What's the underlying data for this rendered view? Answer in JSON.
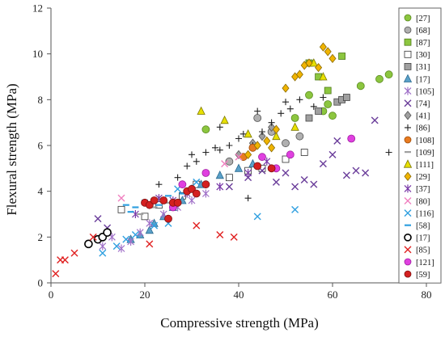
{
  "chart_data": {
    "type": "scatter",
    "title": "",
    "xlabel": "Compressive strength (MPa)",
    "ylabel": "Flexural strength (MPa)",
    "xlim": [
      0,
      80
    ],
    "ylim": [
      0,
      12
    ],
    "xticks": [
      "0",
      "20",
      "40",
      "60",
      "80"
    ],
    "yticks": [
      "0",
      "2",
      "4",
      "6",
      "8",
      "10",
      "12"
    ],
    "grid": false,
    "legend_position": "right",
    "series": [
      {
        "name": "[27]",
        "marker": "circle",
        "color": "#8cc63f",
        "stroke": "#5a8a1f",
        "points": [
          [
            33,
            6.7
          ],
          [
            52,
            7.2
          ],
          [
            55,
            8.2
          ],
          [
            58,
            7.5
          ],
          [
            59,
            7.8
          ],
          [
            60,
            7.3
          ],
          [
            66,
            8.6
          ],
          [
            70,
            8.9
          ],
          [
            72,
            9.1
          ]
        ]
      },
      {
        "name": "[68]",
        "marker": "circle",
        "color": "#b0b0b0",
        "stroke": "#555555",
        "points": [
          [
            38,
            5.3
          ],
          [
            44,
            7.2
          ],
          [
            47,
            6.6
          ],
          [
            50,
            6.1
          ],
          [
            53,
            6.4
          ]
        ]
      },
      {
        "name": "[87]",
        "marker": "square",
        "color": "#8cc63f",
        "stroke": "#4f7a1a",
        "points": [
          [
            55,
            9.6
          ],
          [
            57,
            9.0
          ],
          [
            59,
            8.4
          ],
          [
            62,
            9.9
          ]
        ]
      },
      {
        "name": "[30]",
        "marker": "square",
        "color": "#ffffff",
        "stroke": "#333333",
        "points": [
          [
            15,
            3.2
          ],
          [
            20,
            2.9
          ],
          [
            23,
            3.4
          ],
          [
            28,
            3.8
          ],
          [
            31,
            4.3
          ],
          [
            38,
            4.6
          ],
          [
            42,
            4.9
          ],
          [
            45,
            5.0
          ],
          [
            50,
            5.4
          ],
          [
            54,
            5.7
          ]
        ]
      },
      {
        "name": "[31]",
        "marker": "square",
        "color": "#a0a0a0",
        "stroke": "#444444",
        "points": [
          [
            55,
            7.2
          ],
          [
            57,
            7.5
          ],
          [
            61,
            7.9
          ],
          [
            62,
            8.0
          ],
          [
            63,
            8.1
          ]
        ]
      },
      {
        "name": "[17]",
        "marker": "triangle",
        "color": "#5aa0c8",
        "stroke": "#2a6a90",
        "points": [
          [
            17,
            1.9
          ],
          [
            19,
            2.1
          ],
          [
            21,
            2.3
          ],
          [
            22,
            2.6
          ],
          [
            24,
            2.9
          ],
          [
            26,
            3.3
          ],
          [
            28,
            3.6
          ],
          [
            30,
            4.1
          ],
          [
            32,
            4.3
          ],
          [
            36,
            4.7
          ],
          [
            40,
            5.0
          ],
          [
            43,
            5.2
          ]
        ]
      },
      {
        "name": "[105]",
        "marker": "star",
        "color": "#a070c8",
        "stroke": "#a070c8",
        "points": [
          [
            11,
            1.6
          ],
          [
            13,
            2.0
          ],
          [
            15,
            1.5
          ],
          [
            17,
            1.8
          ],
          [
            19,
            2.2
          ],
          [
            21,
            2.6
          ],
          [
            24,
            3.0
          ],
          [
            27,
            3.3
          ],
          [
            30,
            3.6
          ],
          [
            33,
            3.9
          ],
          [
            36,
            4.2
          ]
        ]
      },
      {
        "name": "[74]",
        "marker": "x",
        "color": "#6a3d9a",
        "stroke": "#6a3d9a",
        "points": [
          [
            10,
            2.8
          ],
          [
            12,
            2.4
          ],
          [
            38,
            4.2
          ],
          [
            42,
            4.6
          ],
          [
            45,
            4.9
          ],
          [
            48,
            4.4
          ],
          [
            50,
            4.8
          ],
          [
            52,
            4.2
          ],
          [
            54,
            4.5
          ],
          [
            56,
            4.3
          ],
          [
            58,
            5.2
          ],
          [
            60,
            5.6
          ],
          [
            61,
            6.2
          ],
          [
            63,
            4.7
          ],
          [
            65,
            4.9
          ],
          [
            67,
            4.8
          ],
          [
            69,
            7.1
          ]
        ]
      },
      {
        "name": "[41]",
        "marker": "diamond",
        "color": "#a0a0a0",
        "stroke": "#555555",
        "points": [
          [
            40,
            5.6
          ],
          [
            43,
            6.1
          ],
          [
            45,
            6.4
          ],
          [
            47,
            6.8
          ]
        ]
      },
      {
        "name": "[86]",
        "marker": "plus",
        "color": "#222222",
        "stroke": "#222222",
        "points": [
          [
            23,
            4.3
          ],
          [
            27,
            4.6
          ],
          [
            29,
            5.1
          ],
          [
            31,
            5.3
          ],
          [
            33,
            5.7
          ],
          [
            35,
            5.9
          ],
          [
            36,
            5.8
          ],
          [
            38,
            6.0
          ],
          [
            40,
            6.3
          ],
          [
            41,
            6.5
          ],
          [
            43,
            6.0
          ],
          [
            45,
            6.6
          ],
          [
            47,
            7.0
          ],
          [
            49,
            7.4
          ],
          [
            50,
            7.9
          ],
          [
            51,
            7.6
          ],
          [
            53,
            8.0
          ],
          [
            56,
            7.7
          ],
          [
            58,
            8.1
          ],
          [
            72,
            5.7
          ],
          [
            42,
            3.7
          ],
          [
            36,
            6.8
          ],
          [
            44,
            7.5
          ],
          [
            30,
            5.6
          ]
        ]
      },
      {
        "name": "[108]",
        "marker": "circle",
        "color": "#e87b20",
        "stroke": "#a04d08",
        "points": [
          [
            41,
            5.5
          ],
          [
            43,
            5.9
          ]
        ]
      },
      {
        "name": "[109]",
        "marker": "dash",
        "color": "#c8c8c8",
        "stroke": "#a0a0a0",
        "points": [
          [
            19,
            3.0
          ],
          [
            22,
            3.3
          ],
          [
            25,
            3.5
          ]
        ]
      },
      {
        "name": "[111]",
        "marker": "triangle",
        "color": "#e8e000",
        "stroke": "#7a7600",
        "points": [
          [
            37,
            7.1
          ],
          [
            32,
            7.5
          ],
          [
            42,
            6.5
          ],
          [
            48,
            6.4
          ],
          [
            52,
            6.8
          ],
          [
            56,
            9.6
          ],
          [
            58,
            9.0
          ]
        ]
      },
      {
        "name": "[29]",
        "marker": "diamond",
        "color": "#f0b400",
        "stroke": "#8a6a00",
        "points": [
          [
            44,
            6.0
          ],
          [
            46,
            6.2
          ],
          [
            48,
            6.7
          ],
          [
            50,
            8.5
          ],
          [
            52,
            9.0
          ],
          [
            53,
            9.1
          ],
          [
            54,
            9.5
          ],
          [
            55,
            9.6
          ],
          [
            57,
            9.4
          ],
          [
            58,
            10.3
          ],
          [
            59,
            10.1
          ],
          [
            60,
            9.8
          ],
          [
            42,
            5.6
          ],
          [
            47,
            5.9
          ]
        ]
      },
      {
        "name": "[37]",
        "marker": "star",
        "color": "#7a3aa8",
        "stroke": "#7a3aa8",
        "points": [
          [
            18,
            3.0
          ],
          [
            23,
            3.7
          ],
          [
            26,
            3.6
          ],
          [
            29,
            3.9
          ],
          [
            36,
            4.2
          ],
          [
            42,
            4.8
          ],
          [
            46,
            5.3
          ]
        ]
      },
      {
        "name": "[80]",
        "marker": "x",
        "color": "#f080c0",
        "stroke": "#f080c0",
        "points": [
          [
            15,
            3.7
          ],
          [
            37,
            5.2
          ],
          [
            40,
            5.5
          ]
        ]
      },
      {
        "name": "[116]",
        "marker": "x",
        "color": "#30a0e0",
        "stroke": "#30a0e0",
        "points": [
          [
            11,
            1.3
          ],
          [
            14,
            1.6
          ],
          [
            16,
            1.9
          ],
          [
            18,
            2.1
          ],
          [
            22,
            2.5
          ],
          [
            25,
            2.6
          ],
          [
            44,
            2.9
          ],
          [
            52,
            3.2
          ],
          [
            27,
            4.1
          ],
          [
            31,
            4.4
          ]
        ]
      },
      {
        "name": "[58]",
        "marker": "dash",
        "color": "#30a0e0",
        "stroke": "#30a0e0",
        "points": [
          [
            16,
            3.4
          ],
          [
            17,
            3.1
          ],
          [
            18,
            3.3
          ],
          [
            20,
            3.6
          ],
          [
            23,
            3.4
          ],
          [
            25,
            3.8
          ],
          [
            28,
            3.9
          ]
        ]
      },
      {
        "name": "[17]",
        "marker": "ring",
        "color": "#ffffff",
        "stroke": "#000000",
        "points": [
          [
            8,
            1.7
          ],
          [
            10,
            1.9
          ],
          [
            11,
            2.0
          ],
          [
            12,
            2.2
          ]
        ]
      },
      {
        "name": "[85]",
        "marker": "x",
        "color": "#e02020",
        "stroke": "#e02020",
        "points": [
          [
            1,
            0.4
          ],
          [
            2,
            1.0
          ],
          [
            3,
            1.0
          ],
          [
            5,
            1.3
          ],
          [
            9,
            2.0
          ],
          [
            21,
            1.7
          ],
          [
            31,
            2.5
          ],
          [
            36,
            2.1
          ],
          [
            39,
            2.0
          ]
        ]
      },
      {
        "name": "[121]",
        "marker": "circle",
        "color": "#e040e0",
        "stroke": "#a020a0",
        "points": [
          [
            26,
            3.3
          ],
          [
            28,
            4.3
          ],
          [
            33,
            4.8
          ],
          [
            45,
            5.5
          ],
          [
            48,
            5.0
          ],
          [
            51,
            5.6
          ],
          [
            64,
            6.3
          ]
        ]
      },
      {
        "name": "[59]",
        "marker": "circle",
        "color": "#d42020",
        "stroke": "#801010",
        "points": [
          [
            20,
            3.5
          ],
          [
            21,
            3.4
          ],
          [
            22,
            3.6
          ],
          [
            24,
            3.6
          ],
          [
            25,
            2.8
          ],
          [
            26,
            3.5
          ],
          [
            27,
            3.5
          ],
          [
            29,
            4.0
          ],
          [
            30,
            4.1
          ],
          [
            31,
            3.9
          ],
          [
            33,
            4.3
          ],
          [
            44,
            5.1
          ],
          [
            47,
            5.0
          ]
        ]
      }
    ]
  }
}
